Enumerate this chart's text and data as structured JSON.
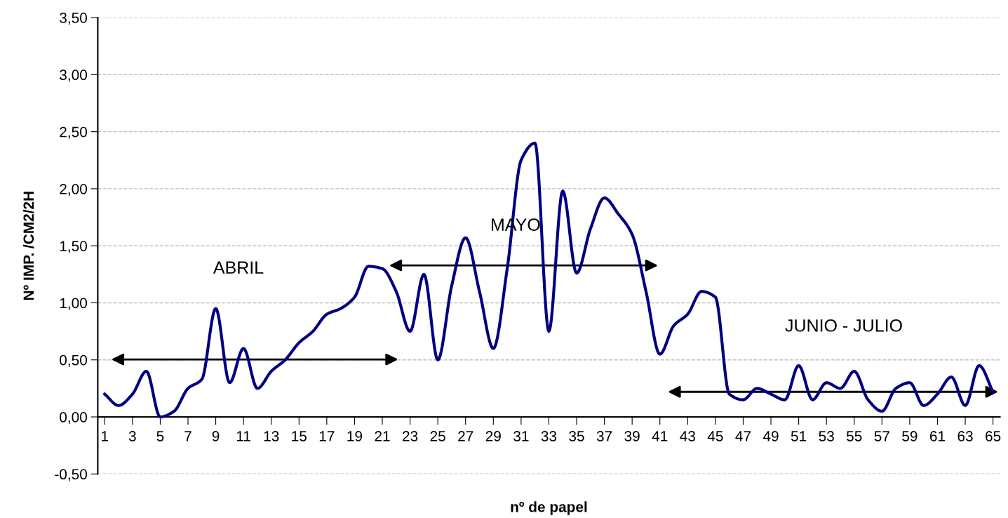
{
  "chart_data": {
    "type": "line",
    "xlabel": "nº de papel",
    "ylabel": "Nº IMP. /CM2/2H",
    "x": [
      1,
      2,
      3,
      4,
      5,
      6,
      7,
      8,
      9,
      10,
      11,
      12,
      13,
      14,
      15,
      16,
      17,
      18,
      19,
      20,
      21,
      22,
      23,
      24,
      25,
      26,
      27,
      28,
      29,
      30,
      31,
      32,
      33,
      34,
      35,
      36,
      37,
      38,
      39,
      40,
      41,
      42,
      43,
      44,
      45,
      46,
      47,
      48,
      49,
      50,
      51,
      52,
      53,
      54,
      55,
      56,
      57,
      58,
      59,
      60,
      61,
      62,
      63,
      64,
      65
    ],
    "series": [
      {
        "color": "#000080",
        "values": [
          0.2,
          0.1,
          0.2,
          0.4,
          0.0,
          0.05,
          0.25,
          0.33,
          0.95,
          0.3,
          0.6,
          0.25,
          0.4,
          0.5,
          0.65,
          0.75,
          0.9,
          0.95,
          1.05,
          1.32,
          1.3,
          1.1,
          0.75,
          1.25,
          0.5,
          1.15,
          1.57,
          1.1,
          0.6,
          1.3,
          2.25,
          2.4,
          0.75,
          1.98,
          1.26,
          1.65,
          1.92,
          1.78,
          1.6,
          1.1,
          0.55,
          0.8,
          0.9,
          1.1,
          1.05,
          0.2,
          0.15,
          0.25,
          0.2,
          0.15,
          0.45,
          0.15,
          0.3,
          0.25,
          0.4,
          0.15,
          0.05,
          0.25,
          0.3,
          0.1,
          0.2,
          0.35,
          0.1,
          0.45,
          0.22
        ]
      }
    ],
    "xlim": [
      0.5,
      65.5
    ],
    "xticks": [
      1,
      3,
      5,
      7,
      9,
      11,
      13,
      15,
      17,
      19,
      21,
      23,
      25,
      27,
      29,
      31,
      33,
      35,
      37,
      39,
      41,
      43,
      45,
      47,
      49,
      51,
      53,
      55,
      57,
      59,
      61,
      63,
      65
    ],
    "ylim": [
      -0.5,
      3.5
    ],
    "yticks": [
      {
        "value": -0.5,
        "label": "-0,50"
      },
      {
        "value": 0,
        "label": "0,00"
      },
      {
        "value": 0.5,
        "label": "0,50"
      },
      {
        "value": 1,
        "label": "1,00"
      },
      {
        "value": 1.5,
        "label": "1,50"
      },
      {
        "value": 2,
        "label": "2,00"
      },
      {
        "value": 2.5,
        "label": "2,50"
      },
      {
        "value": 3,
        "label": "3,00"
      },
      {
        "value": 3.5,
        "label": "3,50"
      }
    ],
    "annotations": [
      "ABRIL",
      "MAYO",
      "JUNIO - JULIO"
    ],
    "grid": "y",
    "line_style": "solid",
    "marker": "none"
  }
}
